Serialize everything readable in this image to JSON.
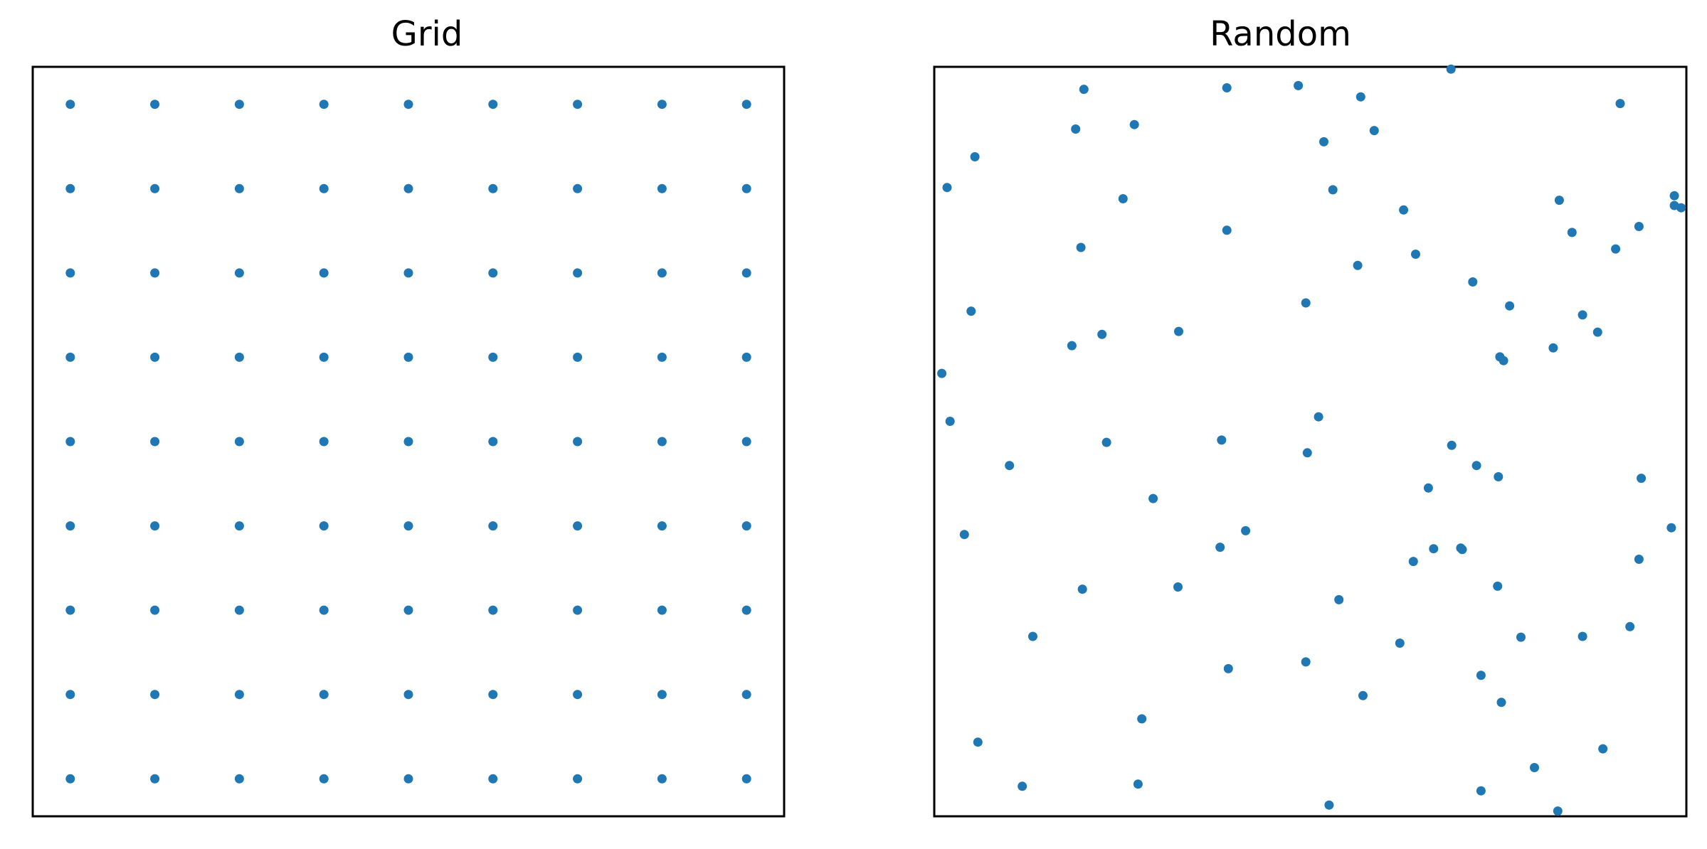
{
  "chart_data": [
    {
      "type": "scatter",
      "title": "Grid",
      "xlim": [
        0,
        1
      ],
      "ylim": [
        0,
        1
      ],
      "grid": false,
      "ticks": false,
      "marker_color": "#1f77b4",
      "x": [
        0.05,
        0.1625,
        0.275,
        0.3875,
        0.5,
        0.6125,
        0.725,
        0.8375,
        0.95,
        0.05,
        0.1625,
        0.275,
        0.3875,
        0.5,
        0.6125,
        0.725,
        0.8375,
        0.95,
        0.05,
        0.1625,
        0.275,
        0.3875,
        0.5,
        0.6125,
        0.725,
        0.8375,
        0.95,
        0.05,
        0.1625,
        0.275,
        0.3875,
        0.5,
        0.6125,
        0.725,
        0.8375,
        0.95,
        0.05,
        0.1625,
        0.275,
        0.3875,
        0.5,
        0.6125,
        0.725,
        0.8375,
        0.95,
        0.05,
        0.1625,
        0.275,
        0.3875,
        0.5,
        0.6125,
        0.725,
        0.8375,
        0.95,
        0.05,
        0.1625,
        0.275,
        0.3875,
        0.5,
        0.6125,
        0.725,
        0.8375,
        0.95,
        0.05,
        0.1625,
        0.275,
        0.3875,
        0.5,
        0.6125,
        0.725,
        0.8375,
        0.95,
        0.05,
        0.1625,
        0.275,
        0.3875,
        0.5,
        0.6125,
        0.725,
        0.8375,
        0.95
      ],
      "y": [
        0.05,
        0.05,
        0.05,
        0.05,
        0.05,
        0.05,
        0.05,
        0.05,
        0.05,
        0.1625,
        0.1625,
        0.1625,
        0.1625,
        0.1625,
        0.1625,
        0.1625,
        0.1625,
        0.1625,
        0.275,
        0.275,
        0.275,
        0.275,
        0.275,
        0.275,
        0.275,
        0.275,
        0.275,
        0.3875,
        0.3875,
        0.3875,
        0.3875,
        0.3875,
        0.3875,
        0.3875,
        0.3875,
        0.3875,
        0.5,
        0.5,
        0.5,
        0.5,
        0.5,
        0.5,
        0.5,
        0.5,
        0.5,
        0.6125,
        0.6125,
        0.6125,
        0.6125,
        0.6125,
        0.6125,
        0.6125,
        0.6125,
        0.6125,
        0.725,
        0.725,
        0.725,
        0.725,
        0.725,
        0.725,
        0.725,
        0.725,
        0.725,
        0.8375,
        0.8375,
        0.8375,
        0.8375,
        0.8375,
        0.8375,
        0.8375,
        0.8375,
        0.8375,
        0.95,
        0.95,
        0.95,
        0.95,
        0.95,
        0.95,
        0.95,
        0.95,
        0.95
      ]
    },
    {
      "type": "scatter",
      "title": "Random",
      "xlim": [
        0,
        1
      ],
      "ylim": [
        0,
        1
      ],
      "grid": false,
      "ticks": false,
      "marker_color": "#1f77b4",
      "x": [
        0.199,
        0.389,
        0.484,
        0.567,
        0.687,
        0.912,
        0.188,
        0.266,
        0.518,
        0.585,
        0.017,
        0.054,
        0.251,
        0.53,
        0.624,
        0.831,
        0.937,
        0.993,
        0.984,
        0.389,
        0.195,
        0.563,
        0.64,
        0.906,
        0.848,
        0.049,
        0.984,
        0.494,
        0.716,
        0.765,
        0.862,
        0.882,
        0.223,
        0.325,
        0.183,
        0.823,
        0.757,
        0.01,
        0.752,
        0.021,
        0.511,
        0.229,
        0.382,
        0.496,
        0.688,
        0.721,
        0.75,
        0.1,
        0.291,
        0.94,
        0.657,
        0.04,
        0.414,
        0.38,
        0.98,
        0.637,
        0.7,
        0.664,
        0.702,
        0.937,
        0.197,
        0.324,
        0.749,
        0.538,
        0.131,
        0.391,
        0.619,
        0.727,
        0.78,
        0.862,
        0.925,
        0.494,
        0.57,
        0.754,
        0.276,
        0.058,
        0.889,
        0.798,
        0.117,
        0.271,
        0.727,
        0.525,
        0.829
      ],
      "y": [
        0.97,
        0.972,
        0.975,
        0.96,
        0.997,
        0.951,
        0.917,
        0.923,
        0.9,
        0.915,
        0.839,
        0.88,
        0.824,
        0.836,
        0.809,
        0.822,
        0.787,
        0.812,
        0.815,
        0.782,
        0.759,
        0.735,
        0.75,
        0.757,
        0.779,
        0.674,
        0.828,
        0.685,
        0.713,
        0.681,
        0.669,
        0.646,
        0.643,
        0.647,
        0.628,
        0.625,
        0.608,
        0.591,
        0.613,
        0.527,
        0.533,
        0.499,
        0.502,
        0.485,
        0.495,
        0.468,
        0.453,
        0.468,
        0.424,
        0.451,
        0.438,
        0.376,
        0.381,
        0.359,
        0.385,
        0.34,
        0.358,
        0.357,
        0.356,
        0.343,
        0.303,
        0.306,
        0.307,
        0.289,
        0.24,
        0.197,
        0.231,
        0.188,
        0.239,
        0.24,
        0.253,
        0.206,
        0.161,
        0.152,
        0.13,
        0.099,
        0.09,
        0.065,
        0.04,
        0.043,
        0.034,
        0.015,
        0.007
      ]
    }
  ]
}
